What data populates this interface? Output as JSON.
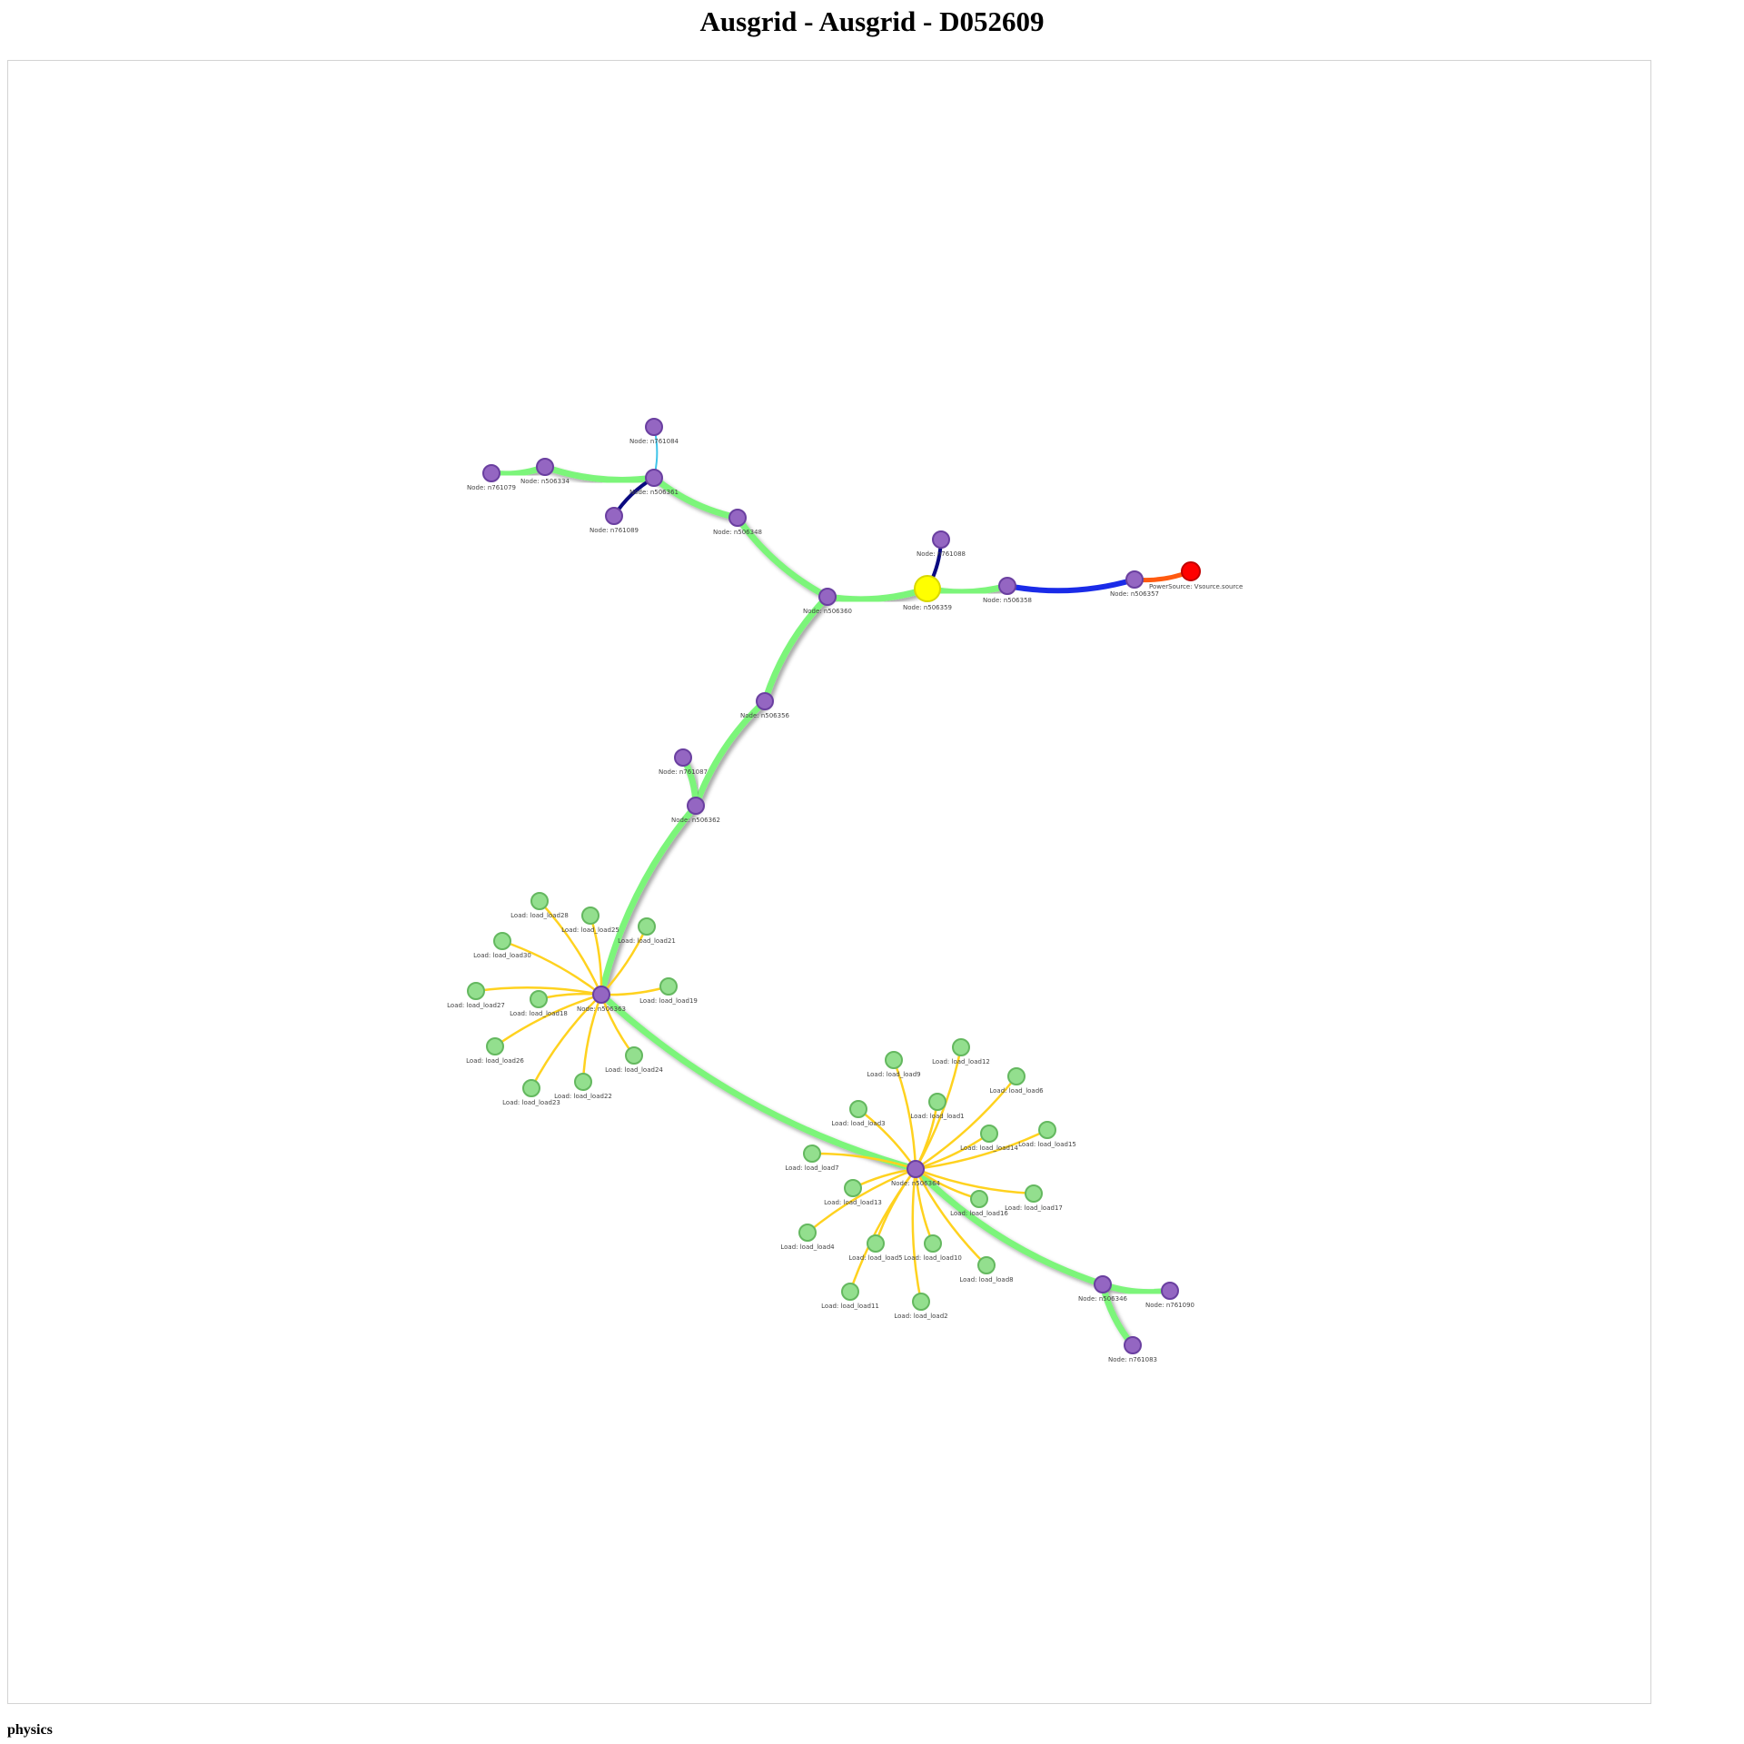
{
  "page": {
    "title": "Ausgrid - Ausgrid - D052609"
  },
  "physics": {
    "label": "physics"
  },
  "colors": {
    "node_fill": "#9466c2",
    "node_stroke": "#6a3fa0",
    "load_fill": "#93df8e",
    "load_stroke": "#64b85f",
    "transformer_fill": "#ffff00",
    "source_fill": "#ff0000",
    "edge_green": "#7cf57a",
    "edge_load": "#ffd21f",
    "edge_blue": "#1a2be8",
    "edge_navy": "#0a0a80",
    "edge_cyan": "#3fc4e8",
    "edge_orange": "#ff5a10"
  },
  "nodes": [
    {
      "id": "n761079",
      "label": "Node: n761079",
      "kind": "node"
    },
    {
      "id": "n506334",
      "label": "Node: n506334",
      "kind": "node"
    },
    {
      "id": "n506361",
      "label": "Node: n506361",
      "kind": "node"
    },
    {
      "id": "n761084",
      "label": "Node: n761084",
      "kind": "node"
    },
    {
      "id": "n761089",
      "label": "Node: n761089",
      "kind": "node"
    },
    {
      "id": "n506348",
      "label": "Node: n506348",
      "kind": "node"
    },
    {
      "id": "n506360",
      "label": "Node: n506360",
      "kind": "node"
    },
    {
      "id": "n506359",
      "label": "Node: n506359",
      "kind": "transformer"
    },
    {
      "id": "n761088",
      "label": "Node: n761088",
      "kind": "node"
    },
    {
      "id": "n506358",
      "label": "Node: n506358",
      "kind": "node"
    },
    {
      "id": "n506357",
      "label": "Node: n506357",
      "kind": "node"
    },
    {
      "id": "source",
      "label": "PowerSource: Vsource.source",
      "kind": "source"
    },
    {
      "id": "n506356",
      "label": "Node: n506356",
      "kind": "node"
    },
    {
      "id": "n761087",
      "label": "Node: n761087",
      "kind": "node"
    },
    {
      "id": "n506362",
      "label": "Node: n506362",
      "kind": "node"
    },
    {
      "id": "n506363",
      "label": "Node: n506363",
      "kind": "node"
    },
    {
      "id": "n506364",
      "label": "Node: n506364",
      "kind": "node"
    },
    {
      "id": "n506346",
      "label": "Node: n506346",
      "kind": "node"
    },
    {
      "id": "n761090",
      "label": "Node: n761090",
      "kind": "node"
    },
    {
      "id": "n761083",
      "label": "Node: n761083",
      "kind": "node"
    },
    {
      "id": "load28",
      "label": "Load: load_load28",
      "kind": "load"
    },
    {
      "id": "load25",
      "label": "Load: load_load25",
      "kind": "load"
    },
    {
      "id": "load21",
      "label": "Load: load_load21",
      "kind": "load"
    },
    {
      "id": "load30",
      "label": "Load: load_load30",
      "kind": "load"
    },
    {
      "id": "load27",
      "label": "Load: load_load27",
      "kind": "load"
    },
    {
      "id": "load18",
      "label": "Load: load_load18",
      "kind": "load"
    },
    {
      "id": "load19",
      "label": "Load: load_load19",
      "kind": "load"
    },
    {
      "id": "load26",
      "label": "Load: load_load26",
      "kind": "load"
    },
    {
      "id": "load24",
      "label": "Load: load_load24",
      "kind": "load"
    },
    {
      "id": "load23",
      "label": "Load: load_load23",
      "kind": "load"
    },
    {
      "id": "load22",
      "label": "Load: load_load22",
      "kind": "load"
    },
    {
      "id": "load9",
      "label": "Load: load_load9",
      "kind": "load"
    },
    {
      "id": "load12",
      "label": "Load: load_load12",
      "kind": "load"
    },
    {
      "id": "load6",
      "label": "Load: load_load6",
      "kind": "load"
    },
    {
      "id": "load1",
      "label": "Load: load_load1",
      "kind": "load"
    },
    {
      "id": "load3",
      "label": "Load: load_load3",
      "kind": "load"
    },
    {
      "id": "load14",
      "label": "Load: load_load14",
      "kind": "load"
    },
    {
      "id": "load15",
      "label": "Load: load_load15",
      "kind": "load"
    },
    {
      "id": "load7",
      "label": "Load: load_load7",
      "kind": "load"
    },
    {
      "id": "load13",
      "label": "Load: load_load13",
      "kind": "load"
    },
    {
      "id": "load17",
      "label": "Load: load_load17",
      "kind": "load"
    },
    {
      "id": "load16",
      "label": "Load: load_load16",
      "kind": "load"
    },
    {
      "id": "load4",
      "label": "Load: load_load4",
      "kind": "load"
    },
    {
      "id": "load5",
      "label": "Load: load_load5",
      "kind": "load"
    },
    {
      "id": "load10",
      "label": "Load: load_load10",
      "kind": "load"
    },
    {
      "id": "load8",
      "label": "Load: load_load8",
      "kind": "load"
    },
    {
      "id": "load11",
      "label": "Load: load_load11",
      "kind": "load"
    },
    {
      "id": "load2",
      "label": "Load: load_load2",
      "kind": "load"
    }
  ],
  "edges": [
    {
      "from": "n761079",
      "to": "n506334",
      "color": "edge_green"
    },
    {
      "from": "n506334",
      "to": "n506361",
      "color": "edge_green"
    },
    {
      "from": "n506361",
      "to": "n761084",
      "color": "edge_cyan"
    },
    {
      "from": "n506361",
      "to": "n761089",
      "color": "edge_navy"
    },
    {
      "from": "n506361",
      "to": "n506348",
      "color": "edge_green"
    },
    {
      "from": "n506348",
      "to": "n506360",
      "color": "edge_green"
    },
    {
      "from": "n506360",
      "to": "n506359",
      "color": "edge_green"
    },
    {
      "from": "n506359",
      "to": "n761088",
      "color": "edge_navy"
    },
    {
      "from": "n506359",
      "to": "n506358",
      "color": "edge_green"
    },
    {
      "from": "n506358",
      "to": "n506357",
      "color": "edge_blue"
    },
    {
      "from": "n506357",
      "to": "source",
      "color": "edge_orange"
    },
    {
      "from": "n506360",
      "to": "n506356",
      "color": "edge_green"
    },
    {
      "from": "n506356",
      "to": "n506362",
      "color": "edge_green"
    },
    {
      "from": "n506362",
      "to": "n761087",
      "color": "edge_green"
    },
    {
      "from": "n506362",
      "to": "n506363",
      "color": "edge_green"
    },
    {
      "from": "n506363",
      "to": "n506364",
      "color": "edge_green"
    },
    {
      "from": "n506364",
      "to": "n506346",
      "color": "edge_green"
    },
    {
      "from": "n506346",
      "to": "n761090",
      "color": "edge_green"
    },
    {
      "from": "n506346",
      "to": "n761083",
      "color": "edge_green"
    },
    {
      "from": "n506363",
      "to": "load28",
      "color": "edge_load"
    },
    {
      "from": "n506363",
      "to": "load25",
      "color": "edge_load"
    },
    {
      "from": "n506363",
      "to": "load21",
      "color": "edge_load"
    },
    {
      "from": "n506363",
      "to": "load30",
      "color": "edge_load"
    },
    {
      "from": "n506363",
      "to": "load27",
      "color": "edge_load"
    },
    {
      "from": "n506363",
      "to": "load18",
      "color": "edge_load"
    },
    {
      "from": "n506363",
      "to": "load19",
      "color": "edge_load"
    },
    {
      "from": "n506363",
      "to": "load26",
      "color": "edge_load"
    },
    {
      "from": "n506363",
      "to": "load24",
      "color": "edge_load"
    },
    {
      "from": "n506363",
      "to": "load23",
      "color": "edge_load"
    },
    {
      "from": "n506363",
      "to": "load22",
      "color": "edge_load"
    },
    {
      "from": "n506364",
      "to": "load9",
      "color": "edge_load"
    },
    {
      "from": "n506364",
      "to": "load12",
      "color": "edge_load"
    },
    {
      "from": "n506364",
      "to": "load6",
      "color": "edge_load"
    },
    {
      "from": "n506364",
      "to": "load1",
      "color": "edge_load"
    },
    {
      "from": "n506364",
      "to": "load3",
      "color": "edge_load"
    },
    {
      "from": "n506364",
      "to": "load14",
      "color": "edge_load"
    },
    {
      "from": "n506364",
      "to": "load15",
      "color": "edge_load"
    },
    {
      "from": "n506364",
      "to": "load7",
      "color": "edge_load"
    },
    {
      "from": "n506364",
      "to": "load13",
      "color": "edge_load"
    },
    {
      "from": "n506364",
      "to": "load17",
      "color": "edge_load"
    },
    {
      "from": "n506364",
      "to": "load16",
      "color": "edge_load"
    },
    {
      "from": "n506364",
      "to": "load4",
      "color": "edge_load"
    },
    {
      "from": "n506364",
      "to": "load5",
      "color": "edge_load"
    },
    {
      "from": "n506364",
      "to": "load10",
      "color": "edge_load"
    },
    {
      "from": "n506364",
      "to": "load8",
      "color": "edge_load"
    },
    {
      "from": "n506364",
      "to": "load11",
      "color": "edge_load"
    },
    {
      "from": "n506364",
      "to": "load2",
      "color": "edge_load"
    }
  ]
}
